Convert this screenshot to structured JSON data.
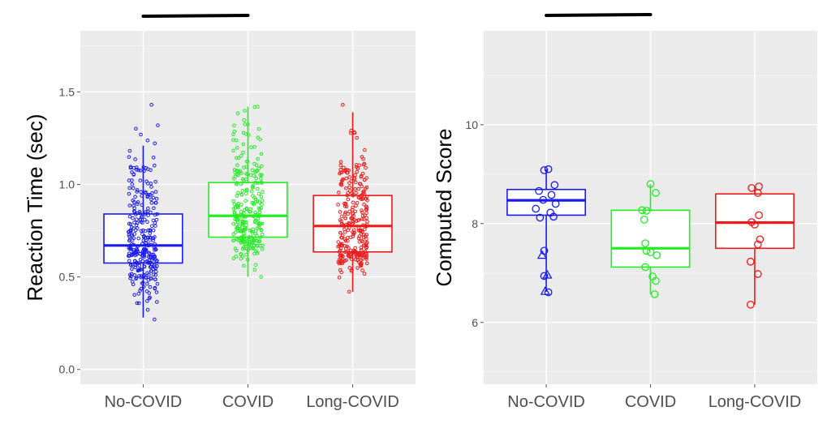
{
  "chart_data": [
    {
      "type": "box",
      "ylabel": "Reaction Time (sec)",
      "xlabel": "",
      "categories": [
        "No-COVID",
        "COVID",
        "Long-COVID"
      ],
      "ylim": [
        -0.08,
        1.83
      ],
      "yticks": [
        0.0,
        0.5,
        1.0,
        1.5
      ],
      "ytick_labels": [
        "0.0",
        "0.5",
        "1.0",
        "1.5"
      ],
      "grid": true,
      "significance_bracket": [
        "No-COVID",
        "COVID"
      ],
      "boxes": [
        {
          "name": "No-COVID",
          "color": "#1a1aee",
          "whisker_low": 0.28,
          "q1": 0.575,
          "median": 0.67,
          "q3": 0.84,
          "whisker_high": 1.21,
          "min": 0.27,
          "max": 1.43,
          "n_points": 300
        },
        {
          "name": "COVID",
          "color": "#22ee22",
          "whisker_low": 0.5,
          "q1": 0.715,
          "median": 0.83,
          "q3": 1.01,
          "whisker_high": 1.42,
          "min": 0.5,
          "max": 1.42,
          "n_points": 260
        },
        {
          "name": "Long-COVID",
          "color": "#ee1a1a",
          "whisker_low": 0.42,
          "q1": 0.635,
          "median": 0.775,
          "q3": 0.94,
          "whisker_high": 1.39,
          "min": 0.42,
          "max": 1.43,
          "n_points": 280
        }
      ]
    },
    {
      "type": "box",
      "ylabel": "Computed Score",
      "xlabel": "",
      "categories": [
        "No-COVID",
        "COVID",
        "Long-COVID"
      ],
      "ylim": [
        4.75,
        11.9
      ],
      "yticks": [
        6,
        8,
        10
      ],
      "ytick_labels": [
        "6",
        "8",
        "10"
      ],
      "grid": true,
      "significance_bracket": [
        "No-COVID",
        "COVID"
      ],
      "boxes": [
        {
          "name": "No-COVID",
          "color": "#1a1aee",
          "whisker_low": 6.62,
          "q1": 8.17,
          "median": 8.47,
          "q3": 8.69,
          "whisker_high": 9.1,
          "points": [
            {
              "x": 0.02,
              "y": 9.1,
              "shape": "circle"
            },
            {
              "x": -0.02,
              "y": 9.08,
              "shape": "circle"
            },
            {
              "x": 0.08,
              "y": 8.78,
              "shape": "circle"
            },
            {
              "x": -0.07,
              "y": 8.66,
              "shape": "circle"
            },
            {
              "x": 0.05,
              "y": 8.58,
              "shape": "circle"
            },
            {
              "x": -0.03,
              "y": 8.48,
              "shape": "circle"
            },
            {
              "x": 0.09,
              "y": 8.4,
              "shape": "circle"
            },
            {
              "x": -0.1,
              "y": 8.3,
              "shape": "circle"
            },
            {
              "x": 0.04,
              "y": 8.22,
              "shape": "circle"
            },
            {
              "x": 0.07,
              "y": 8.14,
              "shape": "circle"
            },
            {
              "x": -0.06,
              "y": 8.12,
              "shape": "circle"
            },
            {
              "x": -0.02,
              "y": 7.45,
              "shape": "circle"
            },
            {
              "x": -0.04,
              "y": 7.36,
              "shape": "triangle"
            },
            {
              "x": 0.01,
              "y": 6.96,
              "shape": "triangle"
            },
            {
              "x": -0.02,
              "y": 6.94,
              "shape": "circle"
            },
            {
              "x": -0.01,
              "y": 6.63,
              "shape": "triangle"
            },
            {
              "x": 0.02,
              "y": 6.61,
              "shape": "circle"
            }
          ]
        },
        {
          "name": "COVID",
          "color": "#22ee22",
          "whisker_low": 6.57,
          "q1": 7.12,
          "median": 7.5,
          "q3": 8.27,
          "whisker_high": 8.8,
          "points": [
            {
              "x": 0.0,
              "y": 8.8,
              "shape": "circle"
            },
            {
              "x": 0.05,
              "y": 8.62,
              "shape": "circle"
            },
            {
              "x": -0.08,
              "y": 8.27,
              "shape": "circle"
            },
            {
              "x": -0.04,
              "y": 8.26,
              "shape": "circle"
            },
            {
              "x": -0.06,
              "y": 8.08,
              "shape": "circle"
            },
            {
              "x": -0.05,
              "y": 7.6,
              "shape": "circle"
            },
            {
              "x": -0.04,
              "y": 7.45,
              "shape": "circle"
            },
            {
              "x": 0.06,
              "y": 7.36,
              "shape": "circle"
            },
            {
              "x": 0.0,
              "y": 7.42,
              "shape": "circle"
            },
            {
              "x": -0.05,
              "y": 7.12,
              "shape": "circle"
            },
            {
              "x": 0.02,
              "y": 6.93,
              "shape": "circle"
            },
            {
              "x": 0.05,
              "y": 6.84,
              "shape": "circle"
            },
            {
              "x": 0.04,
              "y": 6.57,
              "shape": "circle"
            }
          ]
        },
        {
          "name": "Long-COVID",
          "color": "#ee1a1a",
          "whisker_low": 6.36,
          "q1": 7.5,
          "median": 8.02,
          "q3": 8.6,
          "whisker_high": 8.75,
          "points": [
            {
              "x": 0.04,
              "y": 8.75,
              "shape": "circle"
            },
            {
              "x": -0.03,
              "y": 8.72,
              "shape": "circle"
            },
            {
              "x": 0.03,
              "y": 8.62,
              "shape": "circle"
            },
            {
              "x": 0.04,
              "y": 8.17,
              "shape": "circle"
            },
            {
              "x": -0.03,
              "y": 8.03,
              "shape": "circle"
            },
            {
              "x": 0.0,
              "y": 7.98,
              "shape": "circle"
            },
            {
              "x": 0.05,
              "y": 7.68,
              "shape": "circle"
            },
            {
              "x": 0.03,
              "y": 7.58,
              "shape": "circle"
            },
            {
              "x": -0.04,
              "y": 7.23,
              "shape": "circle"
            },
            {
              "x": 0.03,
              "y": 6.98,
              "shape": "circle"
            },
            {
              "x": -0.04,
              "y": 6.36,
              "shape": "circle"
            }
          ]
        }
      ]
    }
  ]
}
